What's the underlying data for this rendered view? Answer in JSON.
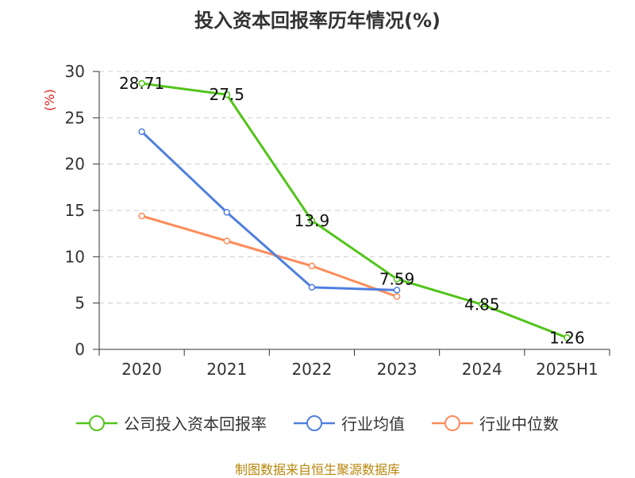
{
  "title": "投入资本回报率历年情况(%)",
  "source": "制图数据来自恒生聚源数据库",
  "chart_data": {
    "type": "line",
    "title": "投入资本回报率历年情况(%)",
    "ylabel": "(%)",
    "categories": [
      "2020",
      "2021",
      "2022",
      "2023",
      "2024",
      "2025H1"
    ],
    "ylim": [
      0,
      30
    ],
    "yticks": [
      0,
      5,
      10,
      15,
      20,
      25,
      30
    ],
    "grid": true,
    "legend_position": "bottom",
    "series": [
      {
        "name": "公司投入资本回报率",
        "color": "#52c41a",
        "values": [
          28.71,
          27.5,
          13.9,
          7.59,
          4.85,
          1.26
        ],
        "labels": [
          "28.71",
          "27.5",
          "13.9",
          "7.59",
          "4.85",
          "1.26"
        ]
      },
      {
        "name": "行业均值",
        "color": "#4f7fde",
        "values": [
          23.5,
          14.8,
          6.7,
          6.4,
          null,
          null
        ]
      },
      {
        "name": "行业中位数",
        "color": "#fb8c5a",
        "values": [
          14.4,
          11.7,
          9.0,
          5.7,
          null,
          null
        ]
      }
    ]
  }
}
